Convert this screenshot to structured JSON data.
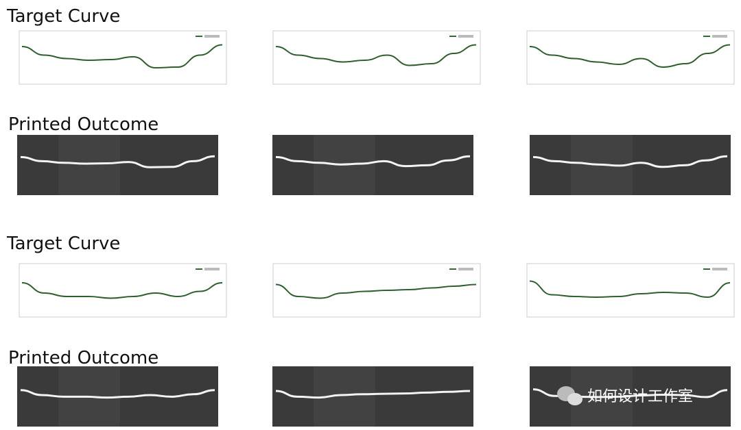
{
  "sections": [
    {
      "label": "Target Curve"
    },
    {
      "label": "Printed Outcome"
    },
    {
      "label": "Target Curve"
    },
    {
      "label": "Printed Outcome"
    }
  ],
  "watermark": "如何设计工作室"
}
